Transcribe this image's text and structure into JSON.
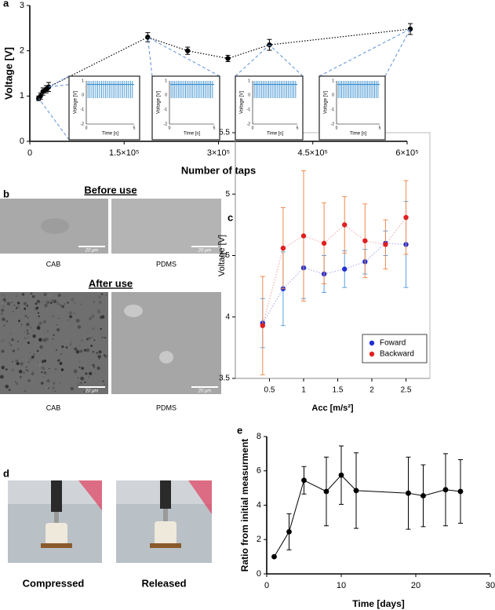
{
  "chart_data": [
    {
      "type": "scatter",
      "label": "a",
      "x_label": "Number of taps",
      "y_label": "Voltage [V]",
      "x": [
        14000,
        17000,
        21000,
        26000,
        30000,
        187500,
        251000,
        315000,
        381000,
        605000
      ],
      "values": [
        0.95,
        1.0,
        1.1,
        1.15,
        1.2,
        2.3,
        2.0,
        1.83,
        2.13,
        2.48
      ],
      "errors": [
        0.05,
        0.07,
        0.08,
        0.08,
        0.1,
        0.1,
        0.08,
        0.07,
        0.12,
        0.12
      ],
      "color": "#000000",
      "line_style": "dotted",
      "xlim": [
        0,
        600000
      ],
      "xticks": [
        0,
        {
          "value": 150000,
          "label": "1.5×10⁵"
        },
        {
          "value": 300000,
          "label": "3×10⁵"
        },
        {
          "value": 450000,
          "label": "4.5×10⁵"
        },
        {
          "value": 600000,
          "label": "6×10⁵"
        }
      ],
      "ylim": [
        0,
        3
      ],
      "yticks": [
        0,
        1,
        2,
        3
      ]
    },
    {
      "type": "scatter",
      "label": "c",
      "x_label": "Acc [m/s²]",
      "y_label": "Voltage [V]",
      "x": [
        0.4,
        0.7,
        1.0,
        1.3,
        1.6,
        1.9,
        2.2,
        2.5
      ],
      "series": [
        {
          "name": "Foward",
          "color": "#1f2fd6",
          "error_color": "#5aa0e0",
          "values": [
            3.95,
            4.23,
            4.4,
            4.35,
            4.39,
            4.45,
            4.6,
            4.59
          ],
          "errors": [
            0.2,
            0.3,
            0.25,
            0.15,
            0.15,
            0.1,
            0.1,
            0.35
          ]
        },
        {
          "name": "Backward",
          "color": "#e02020",
          "error_color": "#f08a50",
          "values": [
            3.93,
            4.56,
            4.66,
            4.6,
            4.75,
            4.62,
            4.59,
            4.81
          ],
          "errors": [
            0.4,
            0.33,
            0.53,
            0.33,
            0.23,
            0.3,
            0.2,
            0.3
          ]
        }
      ],
      "line_style": "dotted",
      "legend": "lower right",
      "xlim": [
        0,
        2.85
      ],
      "xticks": [
        0.5,
        1,
        1.5,
        2,
        2.5
      ],
      "ylim": [
        3.5,
        5.5
      ],
      "yticks": [
        3.5,
        4,
        4.5,
        5,
        5.5
      ]
    },
    {
      "type": "scatter",
      "label": "e",
      "x_label": "Time [days]",
      "y_label": "Ratio from initial measurment",
      "x": [
        1,
        3,
        5,
        8,
        10,
        12,
        19,
        21,
        24,
        26
      ],
      "values": [
        1,
        2.45,
        5.45,
        4.8,
        5.75,
        4.85,
        4.7,
        4.55,
        4.9,
        4.8
      ],
      "errors": [
        0,
        1.05,
        0.8,
        2.0,
        1.7,
        2.2,
        2.1,
        1.8,
        2.1,
        1.85
      ],
      "color": "#000000",
      "line_style": "solid",
      "xlim": [
        0,
        30
      ],
      "xticks": [
        0,
        10,
        20,
        30
      ],
      "ylim": [
        0,
        8
      ],
      "yticks": [
        0,
        2,
        4,
        6,
        8
      ]
    }
  ],
  "inset": {
    "y_label": "Voltage [V]",
    "x_label": "Time [s]",
    "yticks": [
      1,
      0,
      -1,
      -2
    ],
    "xticks": [
      0,
      5
    ]
  },
  "panel_b": {
    "label": "b",
    "before_title": "Before use",
    "after_title": "After use",
    "captions": [
      "CAB",
      "PDMS",
      "CAB",
      "PDMS"
    ],
    "scale_bar": "20 μm"
  },
  "panel_d": {
    "label": "d",
    "captions": [
      "Compressed",
      "Released"
    ]
  }
}
